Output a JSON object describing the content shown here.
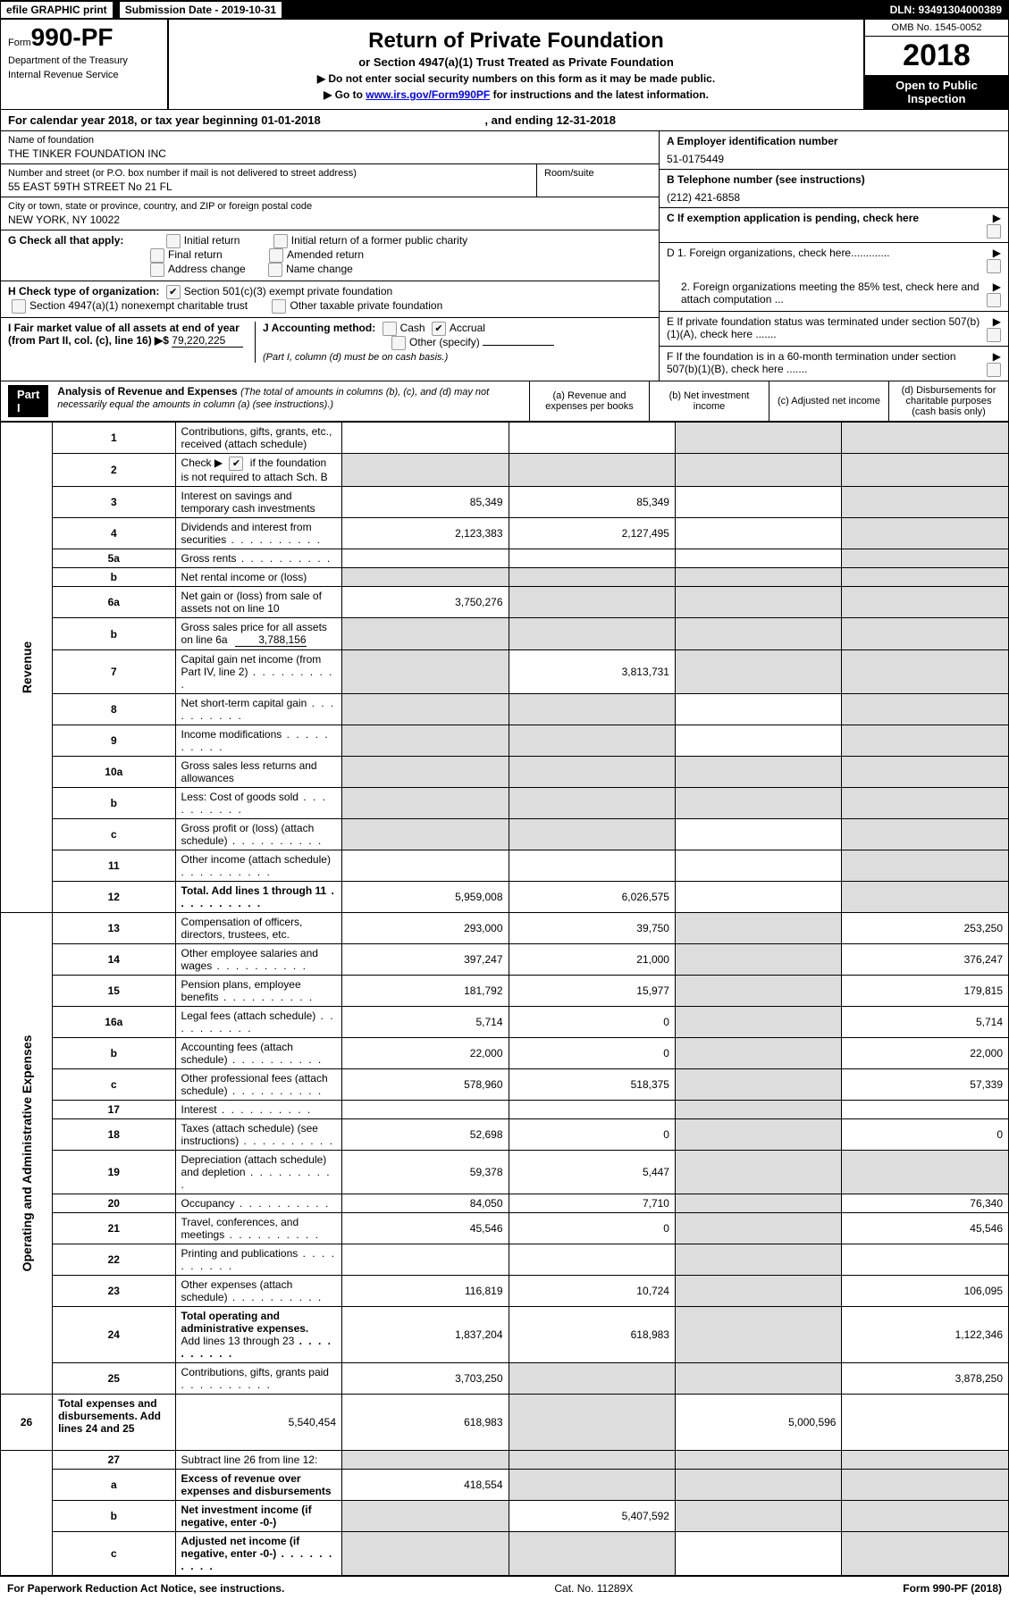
{
  "topbar": {
    "efile": "efile GRAPHIC print",
    "submission": "Submission Date - 2019-10-31",
    "dln": "DLN: 93491304000389"
  },
  "header": {
    "form_word": "Form",
    "form_num": "990-PF",
    "dept1": "Department of the Treasury",
    "dept2": "Internal Revenue Service",
    "title": "Return of Private Foundation",
    "subtitle": "or Section 4947(a)(1) Trust Treated as Private Foundation",
    "warn1": "▶ Do not enter social security numbers on this form as it may be made public.",
    "warn2_pre": "▶ Go to ",
    "warn2_link": "www.irs.gov/Form990PF",
    "warn2_post": " for instructions and the latest information.",
    "omb": "OMB No. 1545-0052",
    "year": "2018",
    "open": "Open to Public Inspection"
  },
  "cal": {
    "text": "For calendar year 2018, or tax year beginning 01-01-2018",
    "mid": ", and ending 12-31-2018"
  },
  "info": {
    "name_lbl": "Name of foundation",
    "name": "THE TINKER FOUNDATION INC",
    "addr_lbl": "Number and street (or P.O. box number if mail is not delivered to street address)",
    "addr": "55 EAST 59TH STREET No 21 FL",
    "room_lbl": "Room/suite",
    "city_lbl": "City or town, state or province, country, and ZIP or foreign postal code",
    "city": "NEW YORK, NY  10022",
    "a_lbl": "A Employer identification number",
    "a_val": "51-0175449",
    "b_lbl": "B Telephone number (see instructions)",
    "b_val": "(212) 421-6858",
    "c_lbl": "C  If exemption application is pending, check here",
    "d1": "D 1. Foreign organizations, check here.............",
    "d2": "2. Foreign organizations meeting the 85% test, check here and attach computation ...",
    "e": "E  If private foundation status was terminated under section 507(b)(1)(A), check here .......",
    "f": "F  If the foundation is in a 60-month termination under section 507(b)(1)(B), check here ......."
  },
  "g": {
    "label": "G Check all that apply:",
    "opts": [
      "Initial return",
      "Initial return of a former public charity",
      "Final return",
      "Amended return",
      "Address change",
      "Name change"
    ]
  },
  "h": {
    "label": "H Check type of organization:",
    "o1": "Section 501(c)(3) exempt private foundation",
    "o2": "Section 4947(a)(1) nonexempt charitable trust",
    "o3": "Other taxable private foundation"
  },
  "i": {
    "label": "I Fair market value of all assets at end of year (from Part II, col. (c), line 16)",
    "arrow": "▶$",
    "val": "79,220,225"
  },
  "j": {
    "label": "J Accounting method:",
    "o1": "Cash",
    "o2": "Accrual",
    "o3": "Other (specify)",
    "note": "(Part I, column (d) must be on cash basis.)"
  },
  "part1": {
    "label": "Part I",
    "title": "Analysis of Revenue and Expenses",
    "note": "(The total of amounts in columns (b), (c), and (d) may not necessarily equal the amounts in column (a) (see instructions).)",
    "cols": {
      "a": "(a)     Revenue and expenses per books",
      "b": "(b)     Net investment income",
      "c": "(c)     Adjusted net income",
      "d": "(d)     Disbursements for charitable purposes (cash basis only)"
    }
  },
  "revenue_label": "Revenue",
  "opex_label": "Operating and Administrative Expenses",
  "rows": {
    "r1": {
      "n": "1",
      "d": "Contributions, gifts, grants, etc., received (attach schedule)"
    },
    "r2": {
      "n": "2",
      "d": "Check ▶",
      "d2": " if the foundation is not required to attach Sch. B"
    },
    "r3": {
      "n": "3",
      "d": "Interest on savings and temporary cash investments",
      "a": "85,349",
      "b": "85,349"
    },
    "r4": {
      "n": "4",
      "d": "Dividends and interest from securities",
      "a": "2,123,383",
      "b": "2,127,495"
    },
    "r5a": {
      "n": "5a",
      "d": "Gross rents"
    },
    "r5b": {
      "n": "b",
      "d": "Net rental income or (loss)"
    },
    "r6a": {
      "n": "6a",
      "d": "Net gain or (loss) from sale of assets not on line 10",
      "a": "3,750,276"
    },
    "r6b": {
      "n": "b",
      "d": "Gross sales price for all assets on line 6a",
      "inline": "3,788,156"
    },
    "r7": {
      "n": "7",
      "d": "Capital gain net income (from Part IV, line 2)",
      "b": "3,813,731"
    },
    "r8": {
      "n": "8",
      "d": "Net short-term capital gain"
    },
    "r9": {
      "n": "9",
      "d": "Income modifications"
    },
    "r10a": {
      "n": "10a",
      "d": "Gross sales less returns and allowances"
    },
    "r10b": {
      "n": "b",
      "d": "Less: Cost of goods sold"
    },
    "r10c": {
      "n": "c",
      "d": "Gross profit or (loss) (attach schedule)"
    },
    "r11": {
      "n": "11",
      "d": "Other income (attach schedule)"
    },
    "r12": {
      "n": "12",
      "d": "Total. Add lines 1 through 11",
      "a": "5,959,008",
      "b": "6,026,575"
    },
    "r13": {
      "n": "13",
      "d": "Compensation of officers, directors, trustees, etc.",
      "a": "293,000",
      "b": "39,750",
      "dd": "253,250"
    },
    "r14": {
      "n": "14",
      "d": "Other employee salaries and wages",
      "a": "397,247",
      "b": "21,000",
      "dd": "376,247"
    },
    "r15": {
      "n": "15",
      "d": "Pension plans, employee benefits",
      "a": "181,792",
      "b": "15,977",
      "dd": "179,815"
    },
    "r16a": {
      "n": "16a",
      "d": "Legal fees (attach schedule)",
      "a": "5,714",
      "b": "0",
      "dd": "5,714"
    },
    "r16b": {
      "n": "b",
      "d": "Accounting fees (attach schedule)",
      "a": "22,000",
      "b": "0",
      "dd": "22,000"
    },
    "r16c": {
      "n": "c",
      "d": "Other professional fees (attach schedule)",
      "a": "578,960",
      "b": "518,375",
      "dd": "57,339"
    },
    "r17": {
      "n": "17",
      "d": "Interest"
    },
    "r18": {
      "n": "18",
      "d": "Taxes (attach schedule) (see instructions)",
      "a": "52,698",
      "b": "0",
      "dd": "0"
    },
    "r19": {
      "n": "19",
      "d": "Depreciation (attach schedule) and depletion",
      "a": "59,378",
      "b": "5,447"
    },
    "r20": {
      "n": "20",
      "d": "Occupancy",
      "a": "84,050",
      "b": "7,710",
      "dd": "76,340"
    },
    "r21": {
      "n": "21",
      "d": "Travel, conferences, and meetings",
      "a": "45,546",
      "b": "0",
      "dd": "45,546"
    },
    "r22": {
      "n": "22",
      "d": "Printing and publications"
    },
    "r23": {
      "n": "23",
      "d": "Other expenses (attach schedule)",
      "a": "116,819",
      "b": "10,724",
      "dd": "106,095"
    },
    "r24": {
      "n": "24",
      "d": "Total operating and administrative expenses."
    },
    "r24b": {
      "d": "Add lines 13 through 23",
      "a": "1,837,204",
      "b": "618,983",
      "dd": "1,122,346"
    },
    "r25": {
      "n": "25",
      "d": "Contributions, gifts, grants paid",
      "a": "3,703,250",
      "dd": "3,878,250"
    },
    "r26": {
      "n": "26",
      "d": "Total expenses and disbursements. Add lines 24 and 25",
      "a": "5,540,454",
      "b": "618,983",
      "dd": "5,000,596"
    },
    "r27": {
      "n": "27",
      "d": "Subtract line 26 from line 12:"
    },
    "r27a": {
      "n": "a",
      "d": "Excess of revenue over expenses and disbursements",
      "a": "418,554"
    },
    "r27b": {
      "n": "b",
      "d": "Net investment income (if negative, enter -0-)",
      "b": "5,407,592"
    },
    "r27c": {
      "n": "c",
      "d": "Adjusted net income (if negative, enter -0-)"
    }
  },
  "footer": {
    "left": "For Paperwork Reduction Act Notice, see instructions.",
    "mid": "Cat. No. 11289X",
    "right": "Form 990-PF (2018)"
  }
}
